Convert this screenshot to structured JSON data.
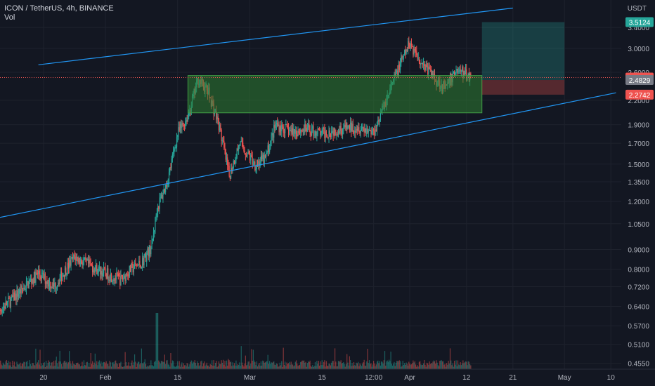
{
  "header": {
    "symbol_line": "ICON / TetherUS, 4h, BINANCE",
    "volume_label": "Vol"
  },
  "chart_data": {
    "type": "candlestick",
    "symbol": "ICON / TetherUS",
    "interval": "4h",
    "exchange": "BINANCE",
    "currency": "USDT",
    "y_scale": "log",
    "ylim": [
      0.435,
      4.0
    ],
    "y_ticks": [
      "3.4000",
      "3.0000",
      "2.6000",
      "2.2000",
      "1.9000",
      "1.7000",
      "1.5000",
      "1.3500",
      "1.2000",
      "1.0500",
      "0.9000",
      "0.8000",
      "0.7200",
      "0.6400",
      "0.5700",
      "0.5100",
      "0.4550"
    ],
    "x_ticks": [
      "20",
      "Feb",
      "15",
      "Mar",
      "15",
      "12:00",
      "Apr",
      "12",
      "21",
      "May",
      "10"
    ],
    "price_tags": [
      {
        "label": "3.5124",
        "value": 3.5124,
        "color": "#26a69a"
      },
      {
        "label": "2.5202",
        "value": 2.5202,
        "color": "#ef5350"
      },
      {
        "label": "2.4829",
        "value": 2.4829,
        "color": "#787b86"
      },
      {
        "label": "2.2742",
        "value": 2.2742,
        "color": "#ef5350"
      }
    ],
    "last_price": 2.5202,
    "demand_zone": {
      "low": 2.04,
      "high": 2.55,
      "color": "#2e7d32"
    },
    "position": {
      "entry": 2.4829,
      "target": 3.5124,
      "stop": 2.2742
    },
    "channel": {
      "upper": [
        [
          "Jan 19",
          2.72
        ],
        [
          "Apr 21",
          3.82
        ]
      ],
      "lower": [
        [
          "Jan 10",
          1.08
        ],
        [
          "May 11",
          2.3
        ]
      ]
    },
    "price_path": [
      [
        "Jan 10",
        0.6
      ],
      [
        "Jan 14",
        0.67
      ],
      [
        "Jan 19",
        0.78
      ],
      [
        "Jan 22",
        0.72
      ],
      [
        "Jan 26",
        0.86
      ],
      [
        "Jan 28",
        0.83
      ],
      [
        "Feb 1",
        0.78
      ],
      [
        "Feb 4",
        0.75
      ],
      [
        "Feb 6",
        0.8
      ],
      [
        "Feb 8",
        0.83
      ],
      [
        "Feb 10",
        0.92
      ],
      [
        "Feb 11",
        1.15
      ],
      [
        "Feb 13",
        1.35
      ],
      [
        "Feb 15",
        1.8
      ],
      [
        "Feb 17",
        2.0
      ],
      [
        "Feb 19",
        2.5
      ],
      [
        "Feb 21",
        2.3
      ],
      [
        "Feb 23",
        1.9
      ],
      [
        "Feb 25",
        1.4
      ],
      [
        "Feb 27",
        1.7
      ],
      [
        "Mar 2",
        1.5
      ],
      [
        "Mar 4",
        1.55
      ],
      [
        "Mar 6",
        1.9
      ],
      [
        "Mar 9",
        1.82
      ],
      [
        "Mar 12",
        1.85
      ],
      [
        "Mar 15",
        1.8
      ],
      [
        "Mar 18",
        1.85
      ],
      [
        "Mar 22",
        1.88
      ],
      [
        "Mar 25",
        1.82
      ],
      [
        "Mar 28",
        2.3
      ],
      [
        "Mar 30",
        2.7
      ],
      [
        "Apr 1",
        3.1
      ],
      [
        "Apr 3",
        2.8
      ],
      [
        "Apr 6",
        2.5
      ],
      [
        "Apr 8",
        2.35
      ],
      [
        "Apr 10",
        2.65
      ],
      [
        "Apr 13",
        2.52
      ]
    ]
  }
}
